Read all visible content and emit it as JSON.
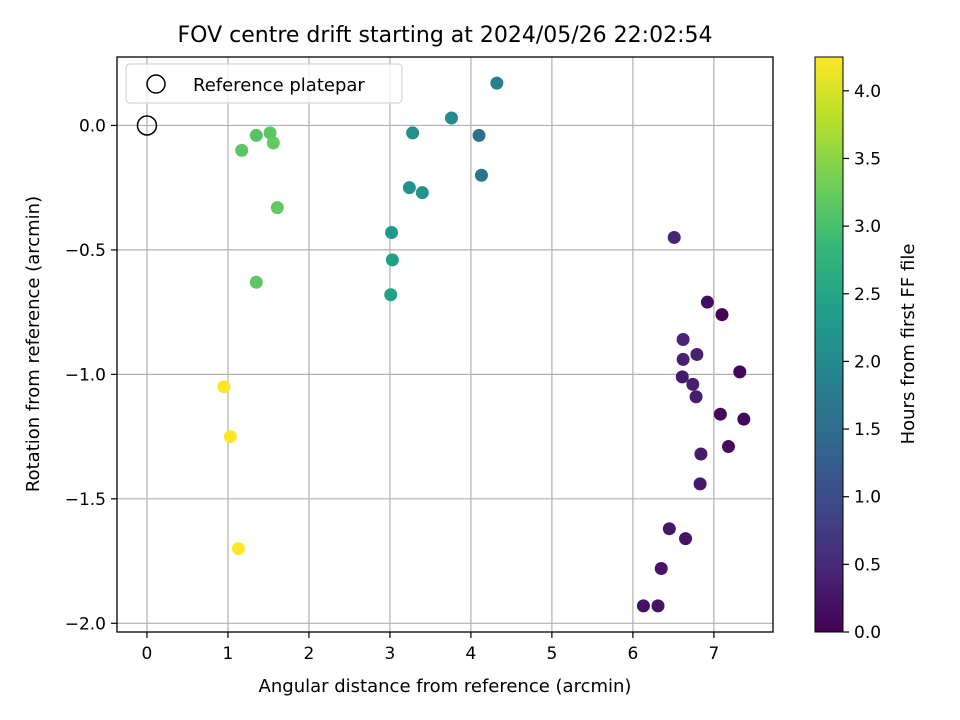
{
  "chart_data": {
    "type": "scatter",
    "title": "FOV centre drift starting at 2024/05/26 22:02:54",
    "xlabel": "Angular distance from reference (arcmin)",
    "ylabel": "Rotation from reference (arcmin)",
    "xlim": [
      -0.37,
      7.73
    ],
    "ylim": [
      -2.035,
      0.275
    ],
    "xticks": [
      0,
      1,
      2,
      3,
      4,
      5,
      6,
      7
    ],
    "xtick_labels": [
      "0",
      "1",
      "2",
      "3",
      "4",
      "5",
      "6",
      "7"
    ],
    "yticks": [
      0.0,
      -0.5,
      -1.0,
      -1.5,
      -2.0
    ],
    "ytick_labels": [
      "0.0",
      "−0.5",
      "−1.0",
      "−1.5",
      "−2.0"
    ],
    "grid": true,
    "colormap": "viridis",
    "colorbar": {
      "label": "Hours from first FF file",
      "min": 0.0,
      "max": 4.25,
      "ticks": [
        0.0,
        0.5,
        1.0,
        1.5,
        2.0,
        2.5,
        3.0,
        3.5,
        4.0
      ],
      "tick_labels": [
        "0.0",
        "0.5",
        "1.0",
        "1.5",
        "2.0",
        "2.5",
        "3.0",
        "3.5",
        "4.0"
      ]
    },
    "legend": {
      "placement": "upper-left",
      "entries": [
        {
          "label": "Reference platepar",
          "marker": "open-circle",
          "color": "#000000"
        }
      ]
    },
    "reference_point": {
      "x": 0.0,
      "y": 0.0
    },
    "points": [
      {
        "x": 7.1,
        "y": -0.76,
        "c": 0.03
      },
      {
        "x": 7.32,
        "y": -0.99,
        "c": 0.05
      },
      {
        "x": 7.37,
        "y": -1.18,
        "c": 0.07
      },
      {
        "x": 7.08,
        "y": -1.16,
        "c": 0.1
      },
      {
        "x": 7.18,
        "y": -1.29,
        "c": 0.12
      },
      {
        "x": 6.92,
        "y": -0.71,
        "c": 0.15
      },
      {
        "x": 6.13,
        "y": -1.93,
        "c": 0.18
      },
      {
        "x": 6.31,
        "y": -1.93,
        "c": 0.2
      },
      {
        "x": 6.35,
        "y": -1.78,
        "c": 0.22
      },
      {
        "x": 6.65,
        "y": -1.66,
        "c": 0.24
      },
      {
        "x": 6.83,
        "y": -1.44,
        "c": 0.26
      },
      {
        "x": 6.45,
        "y": -1.62,
        "c": 0.28
      },
      {
        "x": 6.84,
        "y": -1.32,
        "c": 0.3
      },
      {
        "x": 6.61,
        "y": -1.01,
        "c": 0.32
      },
      {
        "x": 6.78,
        "y": -1.09,
        "c": 0.34
      },
      {
        "x": 6.74,
        "y": -1.04,
        "c": 0.36
      },
      {
        "x": 6.62,
        "y": -0.94,
        "c": 0.38
      },
      {
        "x": 6.79,
        "y": -0.92,
        "c": 0.4
      },
      {
        "x": 6.62,
        "y": -0.86,
        "c": 0.42
      },
      {
        "x": 6.51,
        "y": -0.45,
        "c": 0.45
      },
      {
        "x": 4.1,
        "y": -0.04,
        "c": 1.55
      },
      {
        "x": 4.13,
        "y": -0.2,
        "c": 1.65
      },
      {
        "x": 4.32,
        "y": 0.17,
        "c": 1.85
      },
      {
        "x": 3.76,
        "y": 0.03,
        "c": 2.05
      },
      {
        "x": 3.28,
        "y": -0.03,
        "c": 2.1
      },
      {
        "x": 3.24,
        "y": -0.25,
        "c": 2.15
      },
      {
        "x": 3.4,
        "y": -0.27,
        "c": 2.2
      },
      {
        "x": 3.02,
        "y": -0.43,
        "c": 2.3
      },
      {
        "x": 3.03,
        "y": -0.54,
        "c": 2.4
      },
      {
        "x": 3.01,
        "y": -0.68,
        "c": 2.45
      },
      {
        "x": 1.35,
        "y": -0.04,
        "c": 3.1
      },
      {
        "x": 1.52,
        "y": -0.03,
        "c": 3.15
      },
      {
        "x": 1.56,
        "y": -0.07,
        "c": 3.2
      },
      {
        "x": 1.17,
        "y": -0.1,
        "c": 3.15
      },
      {
        "x": 1.61,
        "y": -0.33,
        "c": 3.2
      },
      {
        "x": 1.35,
        "y": -0.63,
        "c": 3.15
      },
      {
        "x": 0.95,
        "y": -1.05,
        "c": 4.25
      },
      {
        "x": 1.03,
        "y": -1.25,
        "c": 4.25
      },
      {
        "x": 1.13,
        "y": -1.7,
        "c": 4.25
      }
    ]
  }
}
